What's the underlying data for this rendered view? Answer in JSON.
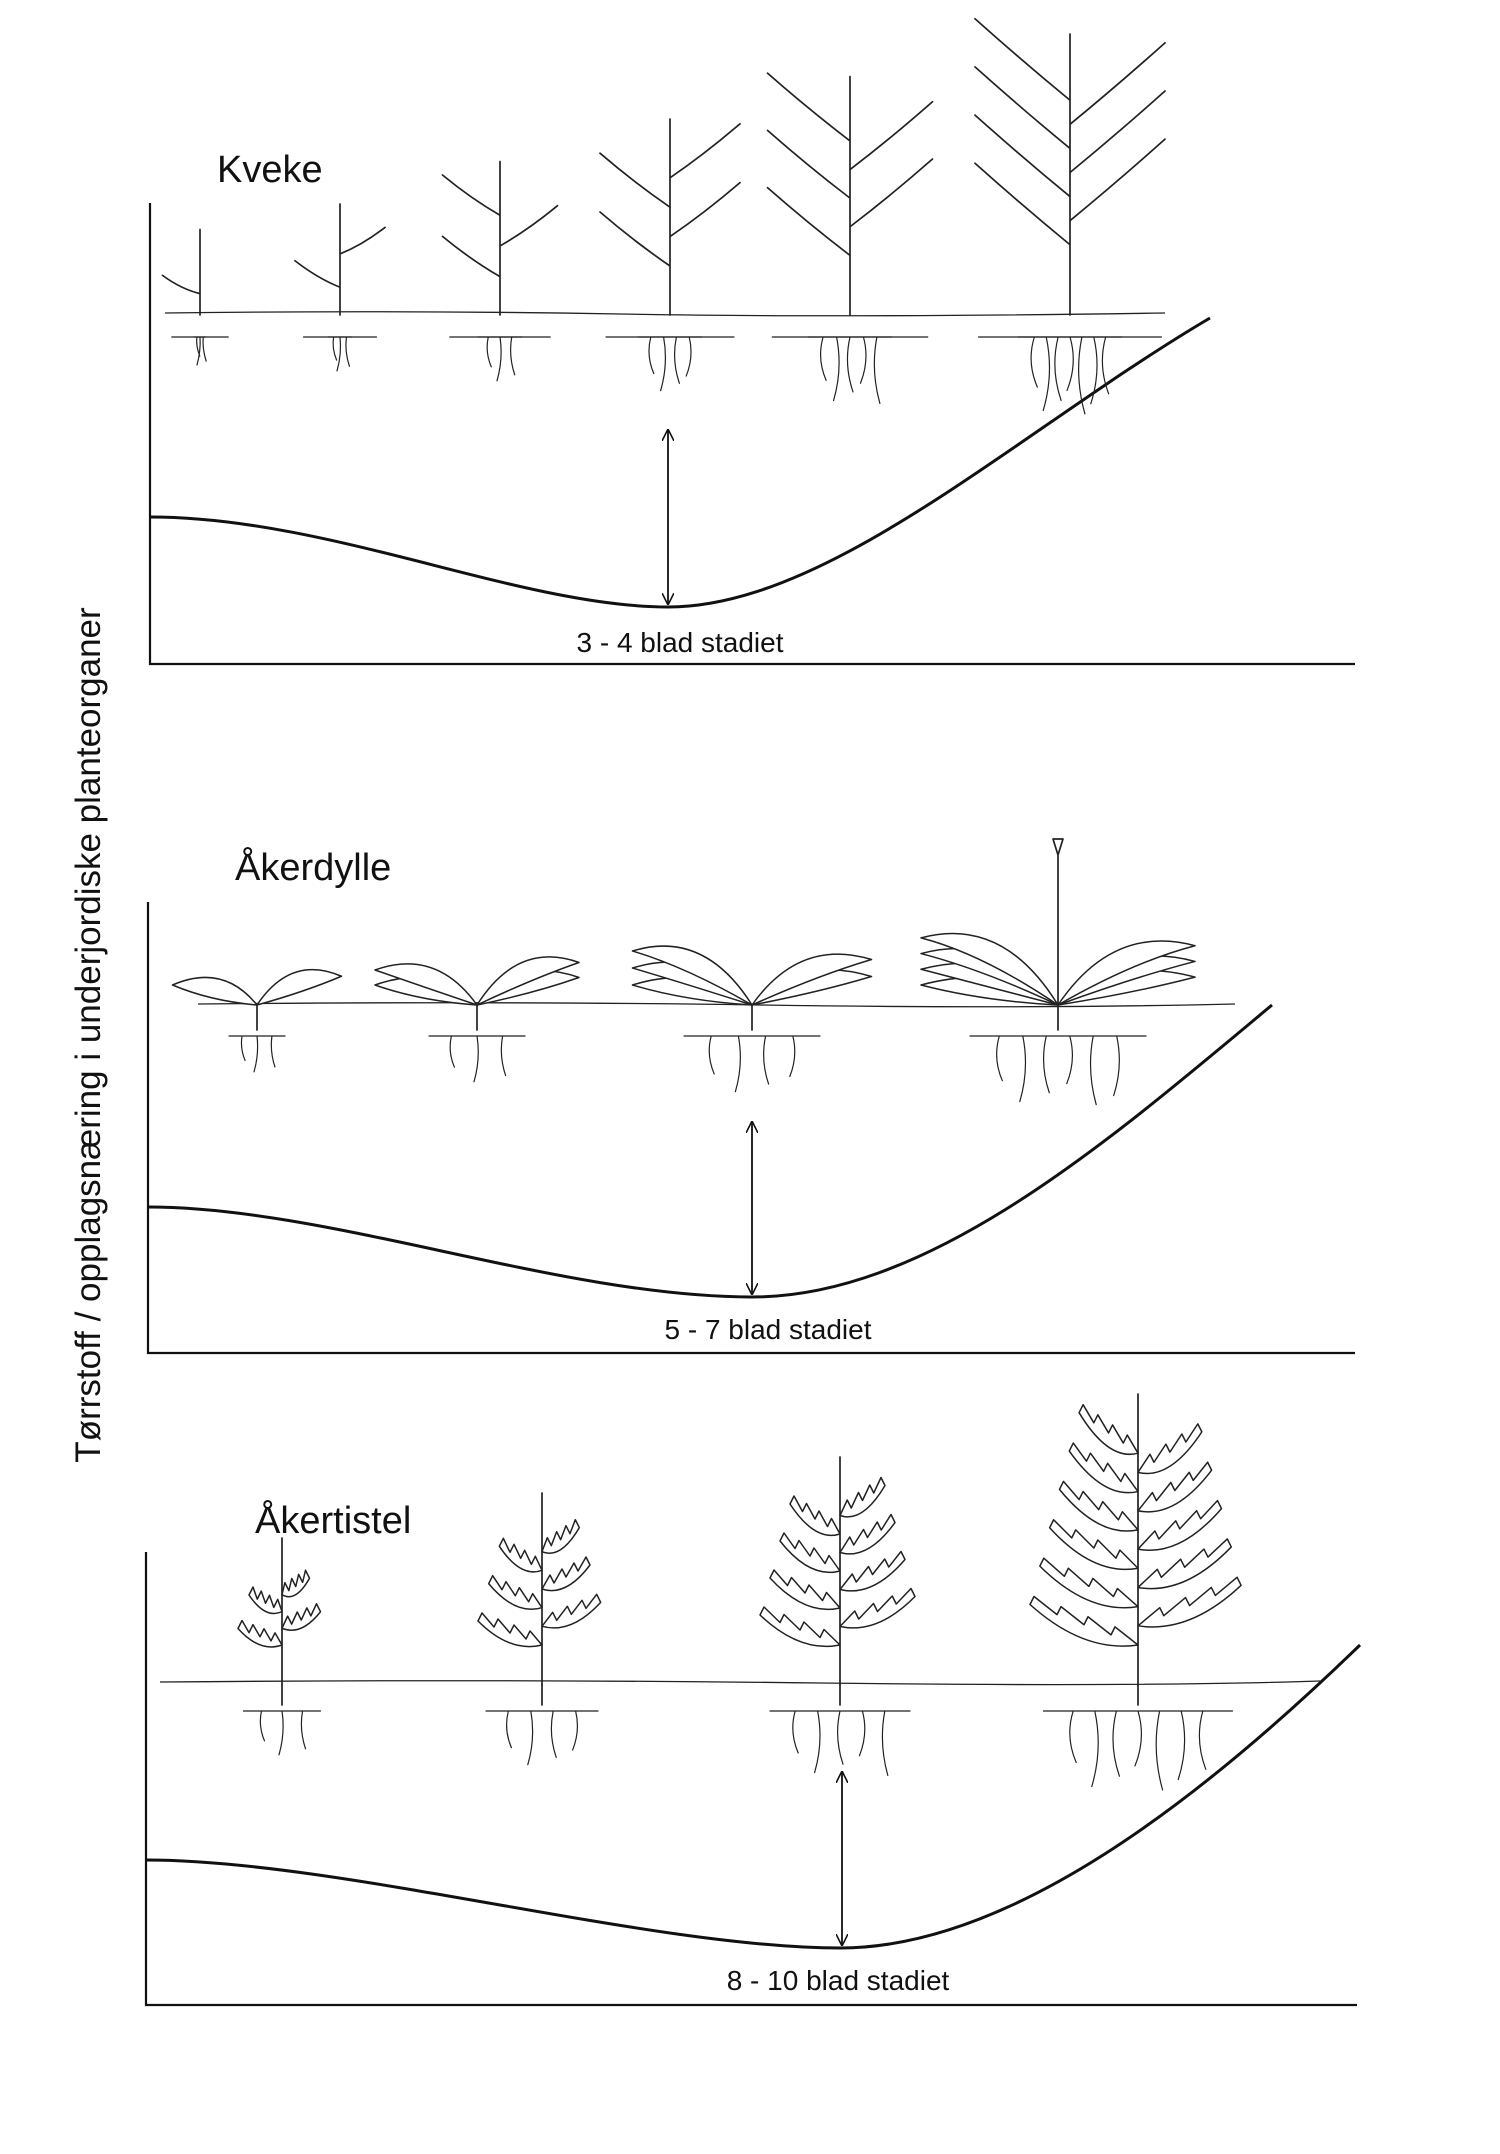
{
  "y_axis_label": "Tørrstoff / opplagsnæring i underjordiske planteorganer",
  "panels": [
    {
      "name": "kveke",
      "title": "Kveke",
      "stage_label": "3 - 4 blad stadiet",
      "plant_type": "grass",
      "plant_count": 6
    },
    {
      "name": "akerdylle",
      "title": "Åkerdylle",
      "stage_label": "5 - 7 blad stadiet",
      "plant_type": "rosette",
      "plant_count": 4
    },
    {
      "name": "akertistel",
      "title": "Åkertistel",
      "stage_label": "8 - 10 blad stadiet",
      "plant_type": "thistle",
      "plant_count": 4
    }
  ],
  "icons": [
    "grass-plant-icon",
    "rosette-plant-icon",
    "thistle-plant-icon",
    "double-arrow-icon"
  ]
}
